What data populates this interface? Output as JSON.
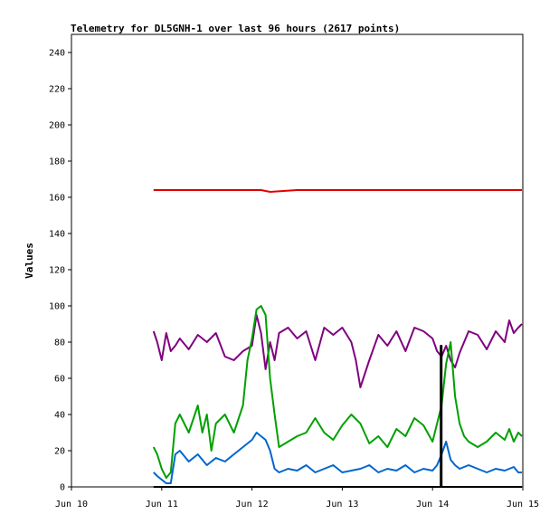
{
  "chart_data": {
    "type": "line",
    "title": "Telemetry for DL5GNH-1 over last 96 hours (2617 points)",
    "ylabel": "Values",
    "xlabel": "",
    "ylim": [
      0,
      250
    ],
    "yticks": [
      0,
      20,
      40,
      60,
      80,
      100,
      120,
      140,
      160,
      180,
      200,
      220,
      240
    ],
    "xlim": [
      0,
      5
    ],
    "xticks": [
      {
        "pos": 0,
        "label": "Jun 10"
      },
      {
        "pos": 1,
        "label": "Jun 11"
      },
      {
        "pos": 2,
        "label": "Jun 12"
      },
      {
        "pos": 3,
        "label": "Jun 13"
      },
      {
        "pos": 4,
        "label": "Jun 14"
      },
      {
        "pos": 5,
        "label": "Jun 15"
      }
    ],
    "grid": false,
    "series": [
      {
        "color": "#e00000",
        "x": [
          0.91,
          1.2,
          1.5,
          2.0,
          2.1,
          2.2,
          2.5,
          3.0,
          3.3,
          3.6,
          4.0,
          4.5,
          4.99
        ],
        "y": [
          164,
          164,
          164,
          164,
          164,
          163,
          164,
          164,
          164,
          164,
          164,
          164,
          164
        ]
      },
      {
        "color": "#800080",
        "x": [
          0.91,
          0.95,
          1.0,
          1.05,
          1.1,
          1.15,
          1.2,
          1.3,
          1.4,
          1.5,
          1.6,
          1.7,
          1.8,
          1.9,
          2.0,
          2.05,
          2.1,
          2.15,
          2.2,
          2.25,
          2.3,
          2.4,
          2.5,
          2.6,
          2.7,
          2.8,
          2.9,
          3.0,
          3.1,
          3.15,
          3.2,
          3.3,
          3.4,
          3.5,
          3.6,
          3.7,
          3.8,
          3.9,
          4.0,
          4.05,
          4.1,
          4.15,
          4.2,
          4.25,
          4.3,
          4.35,
          4.4,
          4.5,
          4.6,
          4.7,
          4.8,
          4.85,
          4.9,
          4.95,
          4.99
        ],
        "y": [
          86,
          80,
          70,
          85,
          75,
          78,
          82,
          76,
          84,
          80,
          85,
          72,
          70,
          75,
          78,
          95,
          85,
          65,
          80,
          70,
          85,
          88,
          82,
          86,
          70,
          88,
          84,
          88,
          80,
          70,
          55,
          70,
          84,
          78,
          86,
          75,
          88,
          86,
          82,
          75,
          72,
          78,
          70,
          66,
          74,
          80,
          86,
          84,
          76,
          86,
          80,
          92,
          85,
          88,
          90
        ]
      },
      {
        "color": "#00a000",
        "x": [
          0.91,
          0.95,
          1.0,
          1.05,
          1.1,
          1.15,
          1.2,
          1.3,
          1.4,
          1.45,
          1.5,
          1.55,
          1.6,
          1.7,
          1.8,
          1.9,
          1.95,
          2.0,
          2.05,
          2.1,
          2.15,
          2.2,
          2.25,
          2.3,
          2.4,
          2.5,
          2.6,
          2.7,
          2.8,
          2.9,
          3.0,
          3.1,
          3.2,
          3.3,
          3.4,
          3.5,
          3.6,
          3.7,
          3.8,
          3.9,
          4.0,
          4.05,
          4.1,
          4.15,
          4.2,
          4.25,
          4.3,
          4.35,
          4.4,
          4.5,
          4.6,
          4.7,
          4.8,
          4.85,
          4.9,
          4.95,
          4.99
        ],
        "y": [
          22,
          18,
          10,
          5,
          8,
          35,
          40,
          30,
          45,
          30,
          40,
          20,
          35,
          40,
          30,
          45,
          70,
          82,
          98,
          100,
          95,
          60,
          40,
          22,
          25,
          28,
          30,
          38,
          30,
          26,
          34,
          40,
          35,
          24,
          28,
          22,
          32,
          28,
          38,
          34,
          25,
          35,
          45,
          68,
          80,
          50,
          35,
          28,
          25,
          22,
          25,
          30,
          26,
          32,
          25,
          30,
          28
        ]
      },
      {
        "color": "#0066cc",
        "x": [
          0.91,
          0.95,
          1.0,
          1.05,
          1.1,
          1.15,
          1.2,
          1.3,
          1.4,
          1.5,
          1.6,
          1.7,
          1.8,
          1.9,
          2.0,
          2.05,
          2.1,
          2.15,
          2.2,
          2.25,
          2.3,
          2.4,
          2.5,
          2.6,
          2.7,
          2.8,
          2.9,
          3.0,
          3.1,
          3.2,
          3.3,
          3.4,
          3.5,
          3.6,
          3.7,
          3.8,
          3.9,
          4.0,
          4.05,
          4.1,
          4.15,
          4.2,
          4.25,
          4.3,
          4.4,
          4.5,
          4.6,
          4.7,
          4.8,
          4.9,
          4.95,
          4.99
        ],
        "y": [
          8,
          6,
          4,
          2,
          2,
          18,
          20,
          14,
          18,
          12,
          16,
          14,
          18,
          22,
          26,
          30,
          28,
          26,
          20,
          10,
          8,
          10,
          9,
          12,
          8,
          10,
          12,
          8,
          9,
          10,
          12,
          8,
          10,
          9,
          12,
          8,
          10,
          9,
          12,
          18,
          25,
          15,
          12,
          10,
          12,
          10,
          8,
          10,
          9,
          11,
          8,
          8
        ]
      },
      {
        "color": "#000000",
        "x": [
          0.91,
          4.09,
          4.09,
          4.1,
          4.1,
          4.99
        ],
        "y": [
          0,
          0,
          78,
          78,
          0,
          0
        ]
      }
    ]
  }
}
